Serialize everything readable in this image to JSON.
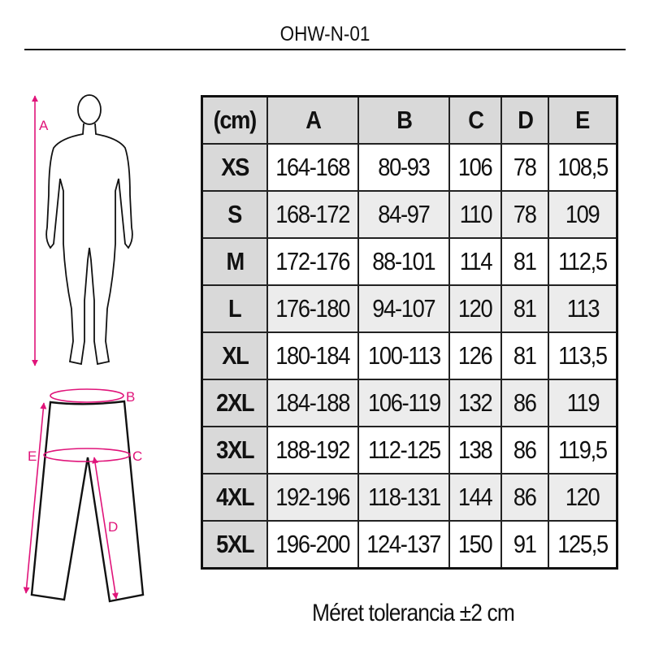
{
  "title": "OHW-N-01",
  "figure_labels": {
    "a": "A",
    "b": "B",
    "c": "C",
    "d": "D",
    "e": "E"
  },
  "accent_color": "#e0147a",
  "table": {
    "headers": [
      "(cm)",
      "A",
      "B",
      "C",
      "D",
      "E"
    ],
    "rows": [
      [
        "XS",
        "164-168",
        "80-93",
        "106",
        "78",
        "108,5"
      ],
      [
        "S",
        "168-172",
        "84-97",
        "110",
        "78",
        "109"
      ],
      [
        "M",
        "172-176",
        "88-101",
        "114",
        "81",
        "112,5"
      ],
      [
        "L",
        "176-180",
        "94-107",
        "120",
        "81",
        "113"
      ],
      [
        "XL",
        "180-184",
        "100-113",
        "126",
        "81",
        "113,5"
      ],
      [
        "2XL",
        "184-188",
        "106-119",
        "132",
        "86",
        "119"
      ],
      [
        "3XL",
        "188-192",
        "112-125",
        "138",
        "86",
        "119,5"
      ],
      [
        "4XL",
        "192-196",
        "118-131",
        "144",
        "86",
        "120"
      ],
      [
        "5XL",
        "196-200",
        "124-137",
        "150",
        "91",
        "125,5"
      ]
    ]
  },
  "note": "Méret tolerancia ±2 cm"
}
